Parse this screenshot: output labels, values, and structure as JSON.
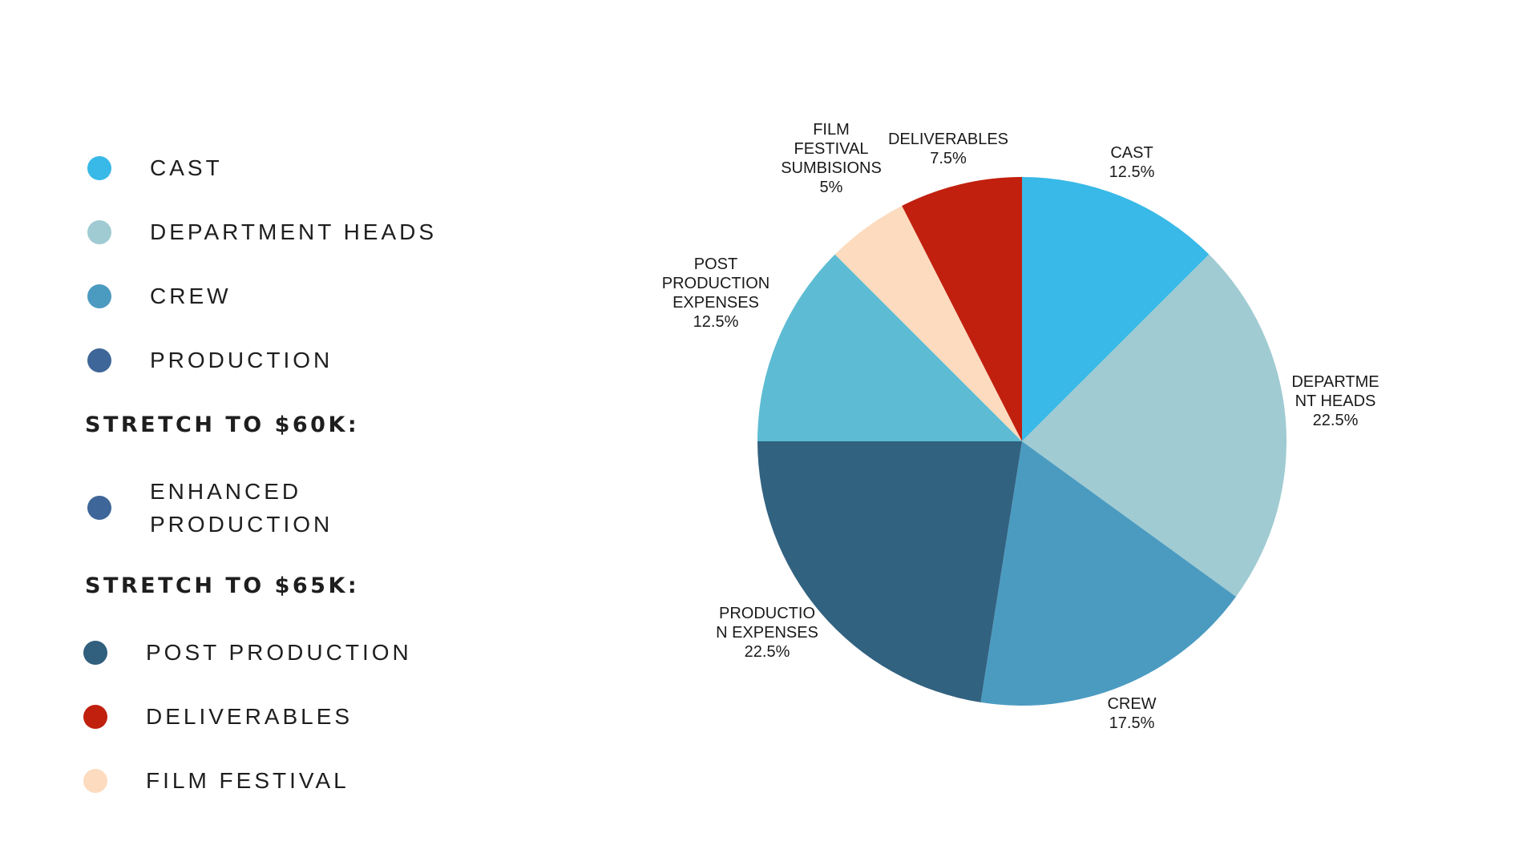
{
  "legend": {
    "items": [
      {
        "label": "CAST",
        "color": "#38b9e7"
      },
      {
        "label": "DEPARTMENT HEADS",
        "color": "#a0cbd2"
      },
      {
        "label": "CREW",
        "color": "#4b9bc1"
      },
      {
        "label": "PRODUCTION",
        "color": "#3e6698"
      }
    ],
    "stretch_60k": {
      "heading": "STRETCH TO $60K:",
      "items": [
        {
          "label": "ENHANCED PRODUCTION",
          "color": "#3e6698"
        }
      ]
    },
    "stretch_65k": {
      "heading": "STRETCH TO $65K:",
      "items": [
        {
          "label": "POST PRODUCTION",
          "color": "#315f7e"
        },
        {
          "label": "DELIVERABLES",
          "color": "#c1200f"
        },
        {
          "label": "FILM FESTIVAL",
          "color": "#fddbbf"
        }
      ]
    }
  },
  "chart_data": {
    "type": "pie",
    "start_angle": "12 o'clock",
    "direction": "clockwise",
    "slices": [
      {
        "label_lines": [
          "CAST"
        ],
        "value": 12.5,
        "value_label": "12.5%",
        "color": "#38b9e7"
      },
      {
        "label_lines": [
          "DEPARTME",
          "NT HEADS"
        ],
        "value": 22.5,
        "value_label": "22.5%",
        "color": "#a0cbd2"
      },
      {
        "label_lines": [
          "CREW"
        ],
        "value": 17.5,
        "value_label": "17.5%",
        "color": "#4b9bc1"
      },
      {
        "label_lines": [
          "PRODUCTIO",
          "N EXPENSES"
        ],
        "value": 22.5,
        "value_label": "22.5%",
        "color": "#316280"
      },
      {
        "label_lines": [
          "POST",
          "PRODUCTION",
          "EXPENSES"
        ],
        "value": 12.5,
        "value_label": "12.5%",
        "color": "#5dbcd3"
      },
      {
        "label_lines": [
          "FILM",
          "FESTIVAL",
          "SUMBISIONS"
        ],
        "value": 5,
        "value_label": "5%",
        "color": "#fddbbf"
      },
      {
        "label_lines": [
          "DELIVERABLES"
        ],
        "value": 7.5,
        "value_label": "7.5%",
        "color": "#c1200f"
      }
    ]
  }
}
